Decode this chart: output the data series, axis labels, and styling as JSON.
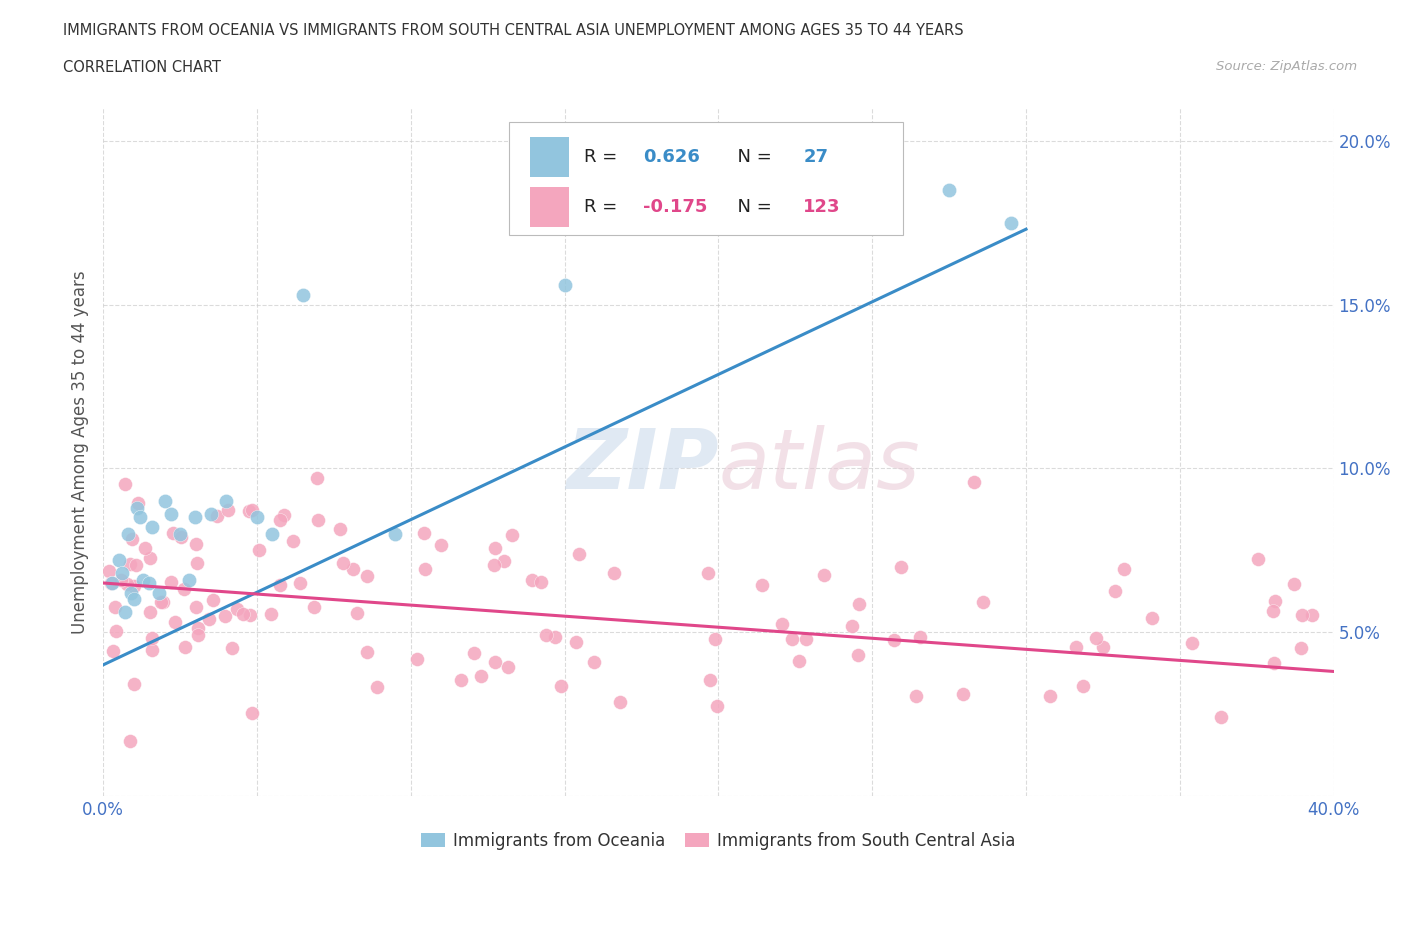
{
  "title_line1": "IMMIGRANTS FROM OCEANIA VS IMMIGRANTS FROM SOUTH CENTRAL ASIA UNEMPLOYMENT AMONG AGES 35 TO 44 YEARS",
  "title_line2": "CORRELATION CHART",
  "source_text": "Source: ZipAtlas.com",
  "ylabel": "Unemployment Among Ages 35 to 44 years",
  "xlim": [
    0.0,
    0.4
  ],
  "ylim": [
    0.0,
    0.21
  ],
  "xtick_positions": [
    0.0,
    0.05,
    0.1,
    0.15,
    0.2,
    0.25,
    0.3,
    0.35,
    0.4
  ],
  "xticklabels": [
    "0.0%",
    "",
    "",
    "",
    "",
    "",
    "",
    "",
    "40.0%"
  ],
  "ytick_positions": [
    0.0,
    0.05,
    0.1,
    0.15,
    0.2
  ],
  "yticklabels": [
    "",
    "5.0%",
    "10.0%",
    "15.0%",
    "20.0%"
  ],
  "oceania_color": "#92c5de",
  "oceania_line_color": "#3a8cc7",
  "sca_color": "#f4a6be",
  "sca_line_color": "#e0478a",
  "oceania_R": 0.626,
  "oceania_N": 27,
  "sca_R": -0.175,
  "sca_N": 123,
  "watermark_text": "ZIPAtlas",
  "tick_label_color": "#4472c4",
  "oceania_x": [
    0.003,
    0.005,
    0.006,
    0.007,
    0.008,
    0.009,
    0.01,
    0.011,
    0.012,
    0.013,
    0.015,
    0.016,
    0.018,
    0.02,
    0.022,
    0.025,
    0.028,
    0.03,
    0.035,
    0.04,
    0.05,
    0.055,
    0.065,
    0.095,
    0.15,
    0.275,
    0.295
  ],
  "oceania_y": [
    0.065,
    0.072,
    0.068,
    0.056,
    0.08,
    0.062,
    0.06,
    0.088,
    0.085,
    0.066,
    0.065,
    0.082,
    0.062,
    0.09,
    0.086,
    0.08,
    0.066,
    0.085,
    0.086,
    0.09,
    0.085,
    0.08,
    0.153,
    0.08,
    0.156,
    0.185,
    0.175
  ],
  "blue_line_x": [
    0.0,
    0.3
  ],
  "blue_line_y": [
    0.04,
    0.173
  ],
  "pink_line_x": [
    0.0,
    0.4
  ],
  "pink_line_y": [
    0.065,
    0.038
  ]
}
